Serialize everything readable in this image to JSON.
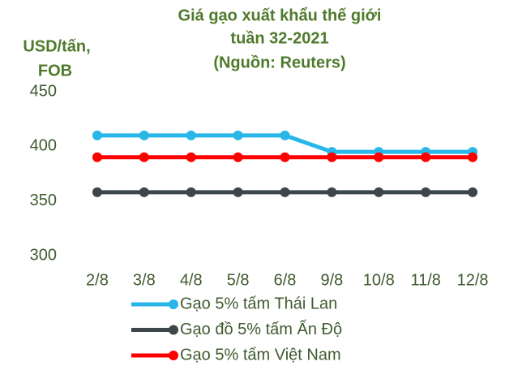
{
  "chart_data": {
    "type": "line",
    "title": [
      "Giá gạo xuất khẩu thế giới",
      "tuần 32-2021",
      "(Nguồn: Reuters)"
    ],
    "y_label": [
      "USD/tấn,",
      "FOB"
    ],
    "categories": [
      "2/8",
      "3/8",
      "4/8",
      "5/8",
      "6/8",
      "9/8",
      "10/8",
      "11/8",
      "12/8"
    ],
    "series": [
      {
        "name": "Gạo 5% tấm Thái Lan",
        "color": "#29b6e8",
        "values": [
          410,
          410,
          410,
          410,
          410,
          395,
          395,
          395,
          395
        ]
      },
      {
        "name": "Gạo đồ 5% tấm Ấn Độ",
        "color": "#3b474b",
        "values": [
          358,
          358,
          358,
          358,
          358,
          358,
          358,
          358,
          358
        ]
      },
      {
        "name": "Gạo 5% tấm Việt Nam",
        "color": "#ff0000",
        "values": [
          390,
          390,
          390,
          390,
          390,
          390,
          390,
          390,
          390
        ]
      }
    ],
    "ylim": [
      300,
      450
    ],
    "yticks": [
      300,
      350,
      400,
      450
    ],
    "grid": false
  }
}
